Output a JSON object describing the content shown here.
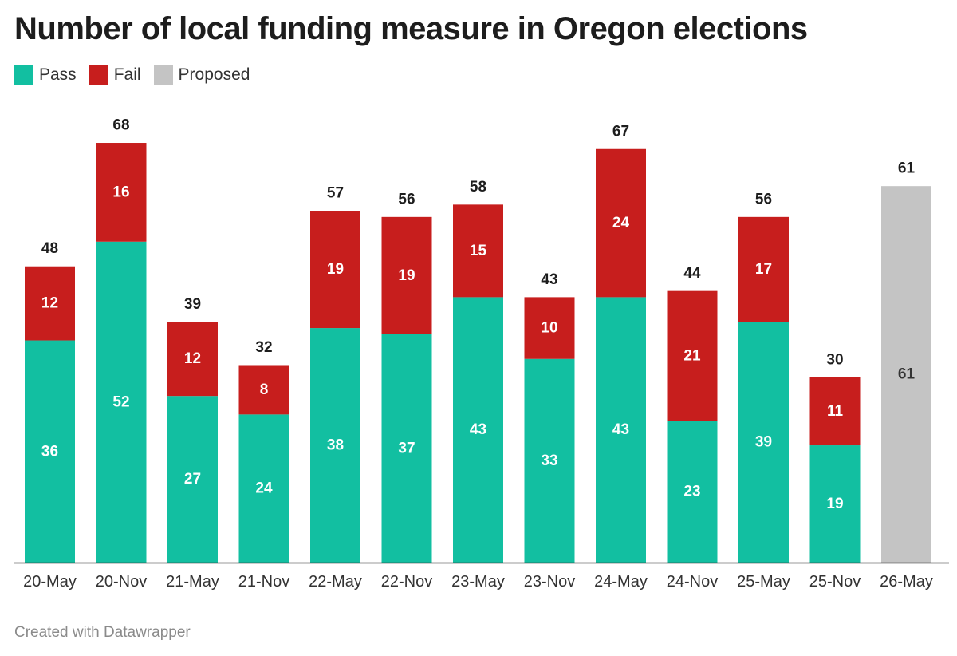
{
  "title": "Number of local funding measure in Oregon elections",
  "legend": {
    "pass": {
      "label": "Pass",
      "color": "#12bfa1"
    },
    "fail": {
      "label": "Fail",
      "color": "#c71e1d"
    },
    "proposed": {
      "label": "Proposed",
      "color": "#c4c4c4"
    }
  },
  "footer": "Created with Datawrapper",
  "chart_data": {
    "type": "bar",
    "stacked": true,
    "title": "Number of local funding measure in Oregon elections",
    "xlabel": "",
    "ylabel": "",
    "ylim": [
      0,
      68
    ],
    "grid": false,
    "legend_position": "top-left",
    "categories": [
      "20-May",
      "20-Nov",
      "21-May",
      "21-Nov",
      "22-May",
      "22-Nov",
      "23-May",
      "23-Nov",
      "24-May",
      "24-Nov",
      "25-May",
      "25-Nov",
      "26-May"
    ],
    "series": [
      {
        "name": "Pass",
        "color": "#12bfa1",
        "values": [
          36,
          52,
          27,
          24,
          38,
          37,
          43,
          33,
          43,
          23,
          39,
          19,
          0
        ]
      },
      {
        "name": "Fail",
        "color": "#c71e1d",
        "values": [
          12,
          16,
          12,
          8,
          19,
          19,
          15,
          10,
          24,
          21,
          17,
          11,
          0
        ]
      },
      {
        "name": "Proposed",
        "color": "#c4c4c4",
        "values": [
          0,
          0,
          0,
          0,
          0,
          0,
          0,
          0,
          0,
          0,
          0,
          0,
          61
        ]
      }
    ],
    "totals": [
      48,
      68,
      39,
      32,
      57,
      56,
      58,
      43,
      67,
      44,
      56,
      30,
      61
    ]
  }
}
